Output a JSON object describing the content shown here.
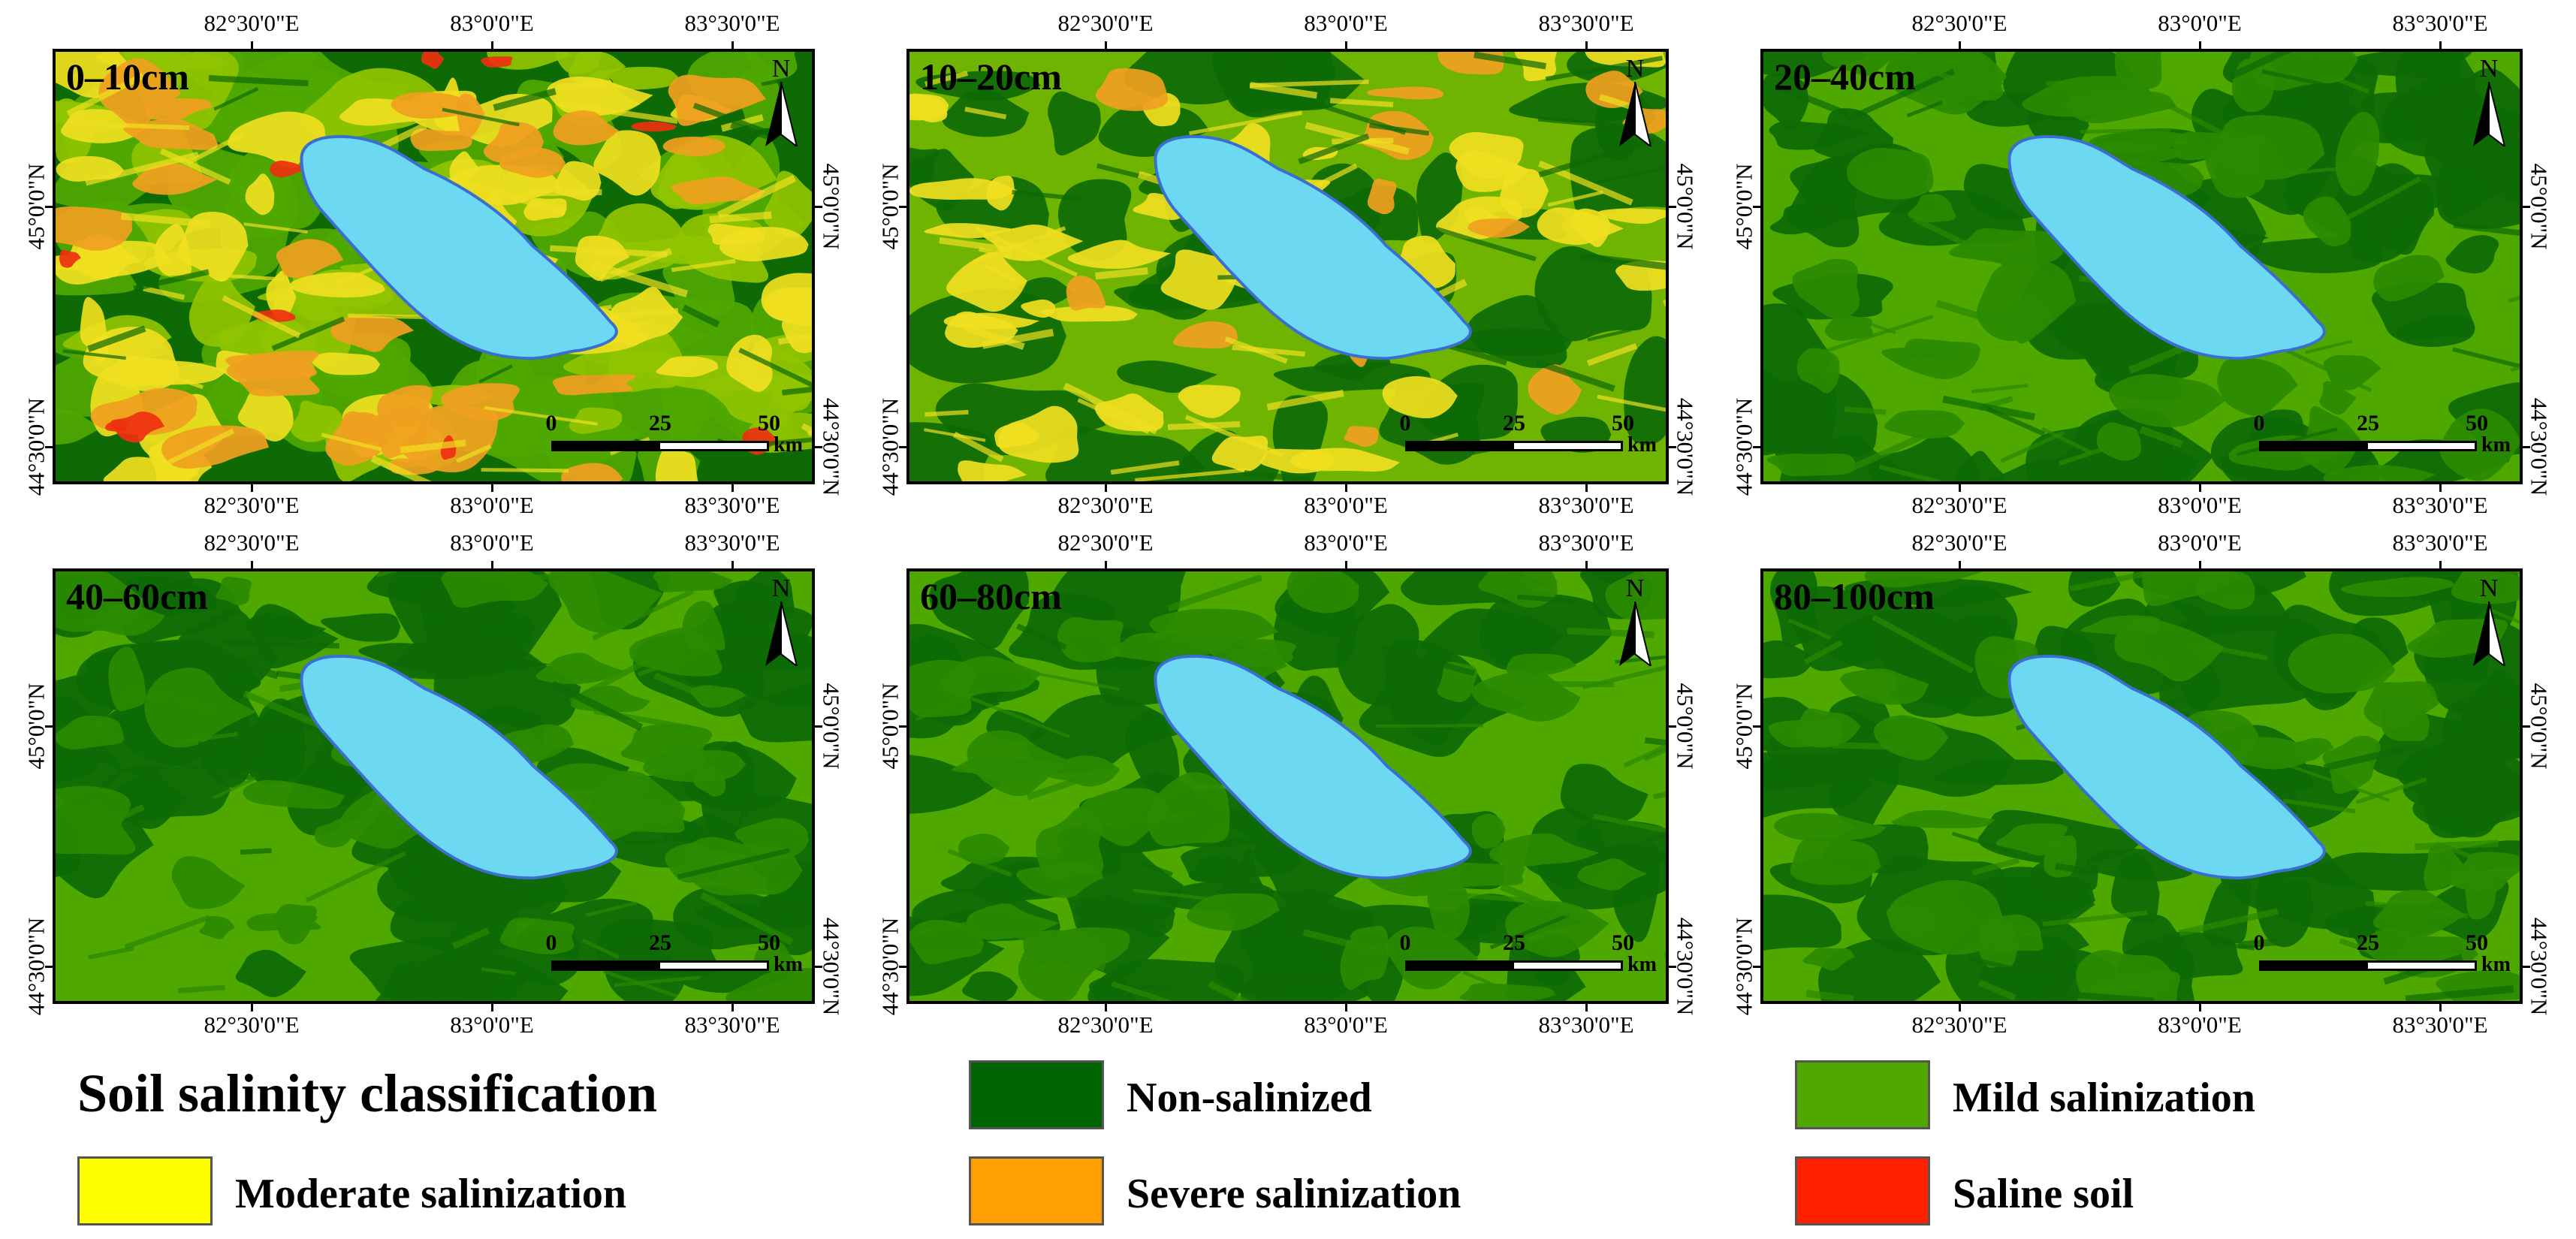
{
  "figure": {
    "panels": [
      {
        "depth": "0–10cm"
      },
      {
        "depth": "10–20cm"
      },
      {
        "depth": "20–40cm"
      },
      {
        "depth": "40–60cm"
      },
      {
        "depth": "60–80cm"
      },
      {
        "depth": "80–100cm"
      }
    ],
    "lon_ticks": [
      "82°30'0\"E",
      "83°0'0\"E",
      "83°30'0\"E"
    ],
    "lat_ticks": [
      "45°0'0\"N",
      "44°30'0\"N"
    ],
    "north_label": "N",
    "scale_bar": {
      "labels": [
        "0",
        "25",
        "50"
      ],
      "unit": "km"
    },
    "legend": {
      "title": "Soil salinity classification",
      "classes": [
        {
          "label": "Non-salinized",
          "color": "#006400"
        },
        {
          "label": "Mild salinization",
          "color": "#4fa800"
        },
        {
          "label": "Moderate salinization",
          "color": "#ffff00"
        },
        {
          "label": "Severe salinization",
          "color": "#ffa000"
        },
        {
          "label": "Saline soil",
          "color": "#ff2000"
        }
      ]
    },
    "colors": {
      "lake": "#6dd8f2",
      "lake_outline": "#3a6fd0",
      "non_salinized": "#0d6a05",
      "mild": "#4fa800",
      "moderate": "#f0e020",
      "severe": "#f0a020",
      "saline": "#ee3010"
    }
  }
}
